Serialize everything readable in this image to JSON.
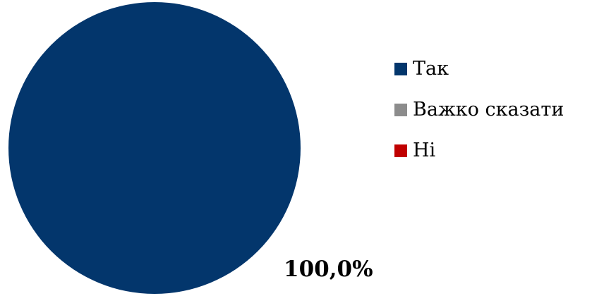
{
  "chart_data": {
    "type": "pie",
    "categories": [
      "Так",
      "Важко сказати",
      "Ні"
    ],
    "values": [
      100.0,
      0.0,
      0.0
    ],
    "colors": [
      "#03366C",
      "#8C8C8C",
      "#C00000"
    ],
    "data_labels": [
      "100,0%"
    ],
    "legend_position": "right",
    "start_angle_deg": 0
  },
  "legend": {
    "items": [
      {
        "label": "Так",
        "color": "#03366C"
      },
      {
        "label": "Важко сказати",
        "color": "#8C8C8C"
      },
      {
        "label": "Ні",
        "color": "#C00000"
      }
    ]
  }
}
